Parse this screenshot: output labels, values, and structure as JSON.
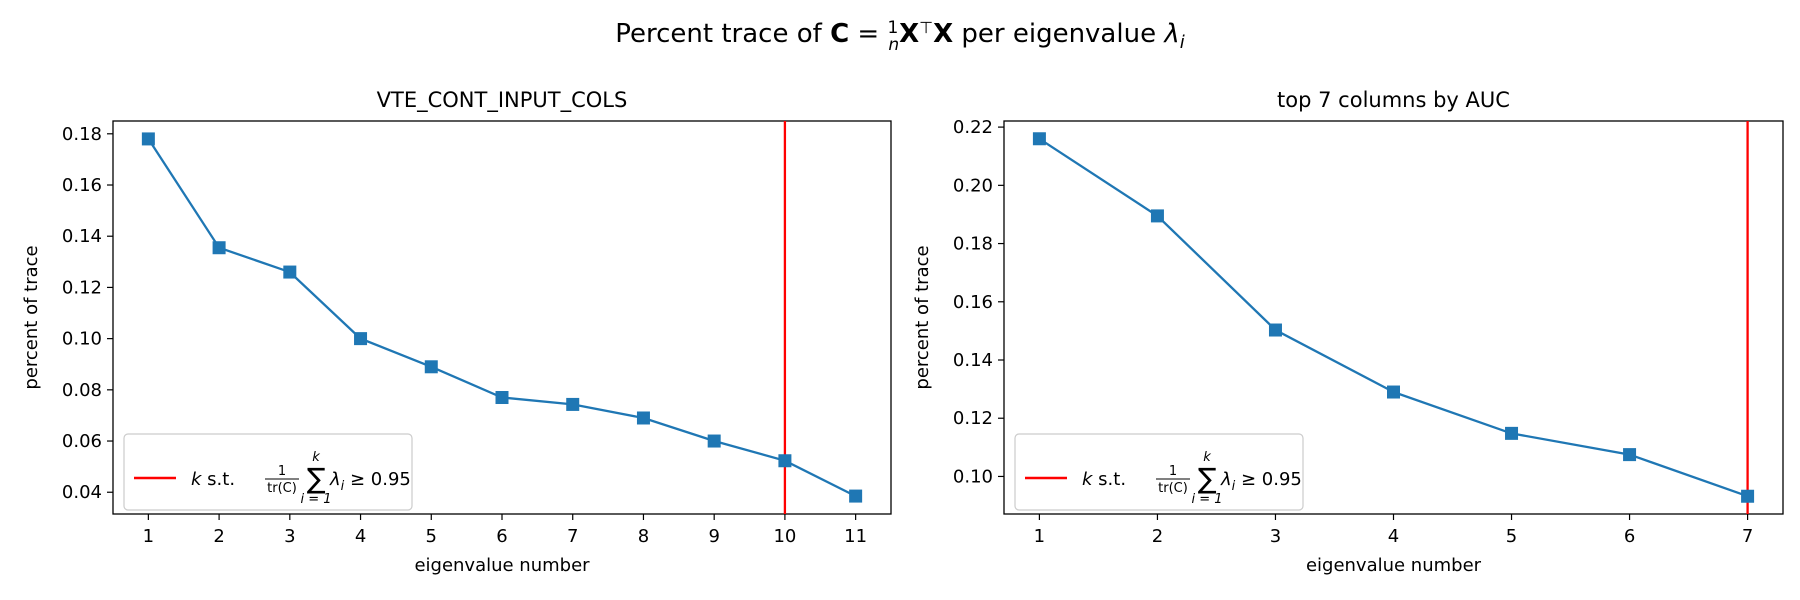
{
  "suptitle": {
    "prefix": "Percent trace of ",
    "matrix": "C",
    "eq": " = ",
    "frac_num": "1",
    "frac_den": "n",
    "x": "X",
    "t": "⊤",
    "x2": "X",
    "per": " per eigenvalue ",
    "lambda": "λ",
    "sub": "i"
  },
  "legend": {
    "k": "k",
    "st": " s.t. ",
    "frac_num": "1",
    "frac_den": "tr(C)",
    "sum": "∑",
    "sum_top": "k",
    "sum_bottom": "i = 1",
    "lambda": "λ",
    "sub": "i",
    "rel": "≥ 0.95"
  },
  "colors": {
    "series": "#1f77b4",
    "threshold": "#ff0000",
    "axis": "#000000"
  },
  "chart_data": [
    {
      "type": "line",
      "title": "VTE_CONT_INPUT_COLS",
      "xlabel": "eigenvalue number",
      "ylabel": "percent of trace",
      "marker": "square",
      "x": [
        1,
        2,
        3,
        4,
        5,
        6,
        7,
        8,
        9,
        10,
        11
      ],
      "y": [
        0.178,
        0.1355,
        0.126,
        0.1,
        0.089,
        0.077,
        0.0743,
        0.069,
        0.06,
        0.0523,
        0.0385
      ],
      "xlim": [
        0.5,
        11.5
      ],
      "ylim": [
        0.0315,
        0.185
      ],
      "xticks": [
        1,
        2,
        3,
        4,
        5,
        6,
        7,
        8,
        9,
        10,
        11
      ],
      "yticks": [
        "0.04",
        "0.06",
        "0.08",
        "0.10",
        "0.12",
        "0.14",
        "0.16",
        "0.18"
      ],
      "threshold_x": 10,
      "legend_loc": "lower left",
      "grid": false
    },
    {
      "type": "line",
      "title": "top 7 columns by AUC",
      "xlabel": "eigenvalue number",
      "ylabel": "percent of trace",
      "marker": "square",
      "x": [
        1,
        2,
        3,
        4,
        5,
        6,
        7
      ],
      "y": [
        0.216,
        0.1895,
        0.1503,
        0.129,
        0.1148,
        0.1075,
        0.0932
      ],
      "xlim": [
        0.7,
        7.3
      ],
      "ylim": [
        0.0871,
        0.2221
      ],
      "xticks": [
        1,
        2,
        3,
        4,
        5,
        6,
        7
      ],
      "yticks": [
        "0.10",
        "0.12",
        "0.14",
        "0.16",
        "0.18",
        "0.20",
        "0.22"
      ],
      "threshold_x": 7,
      "legend_loc": "lower left",
      "grid": false
    }
  ]
}
